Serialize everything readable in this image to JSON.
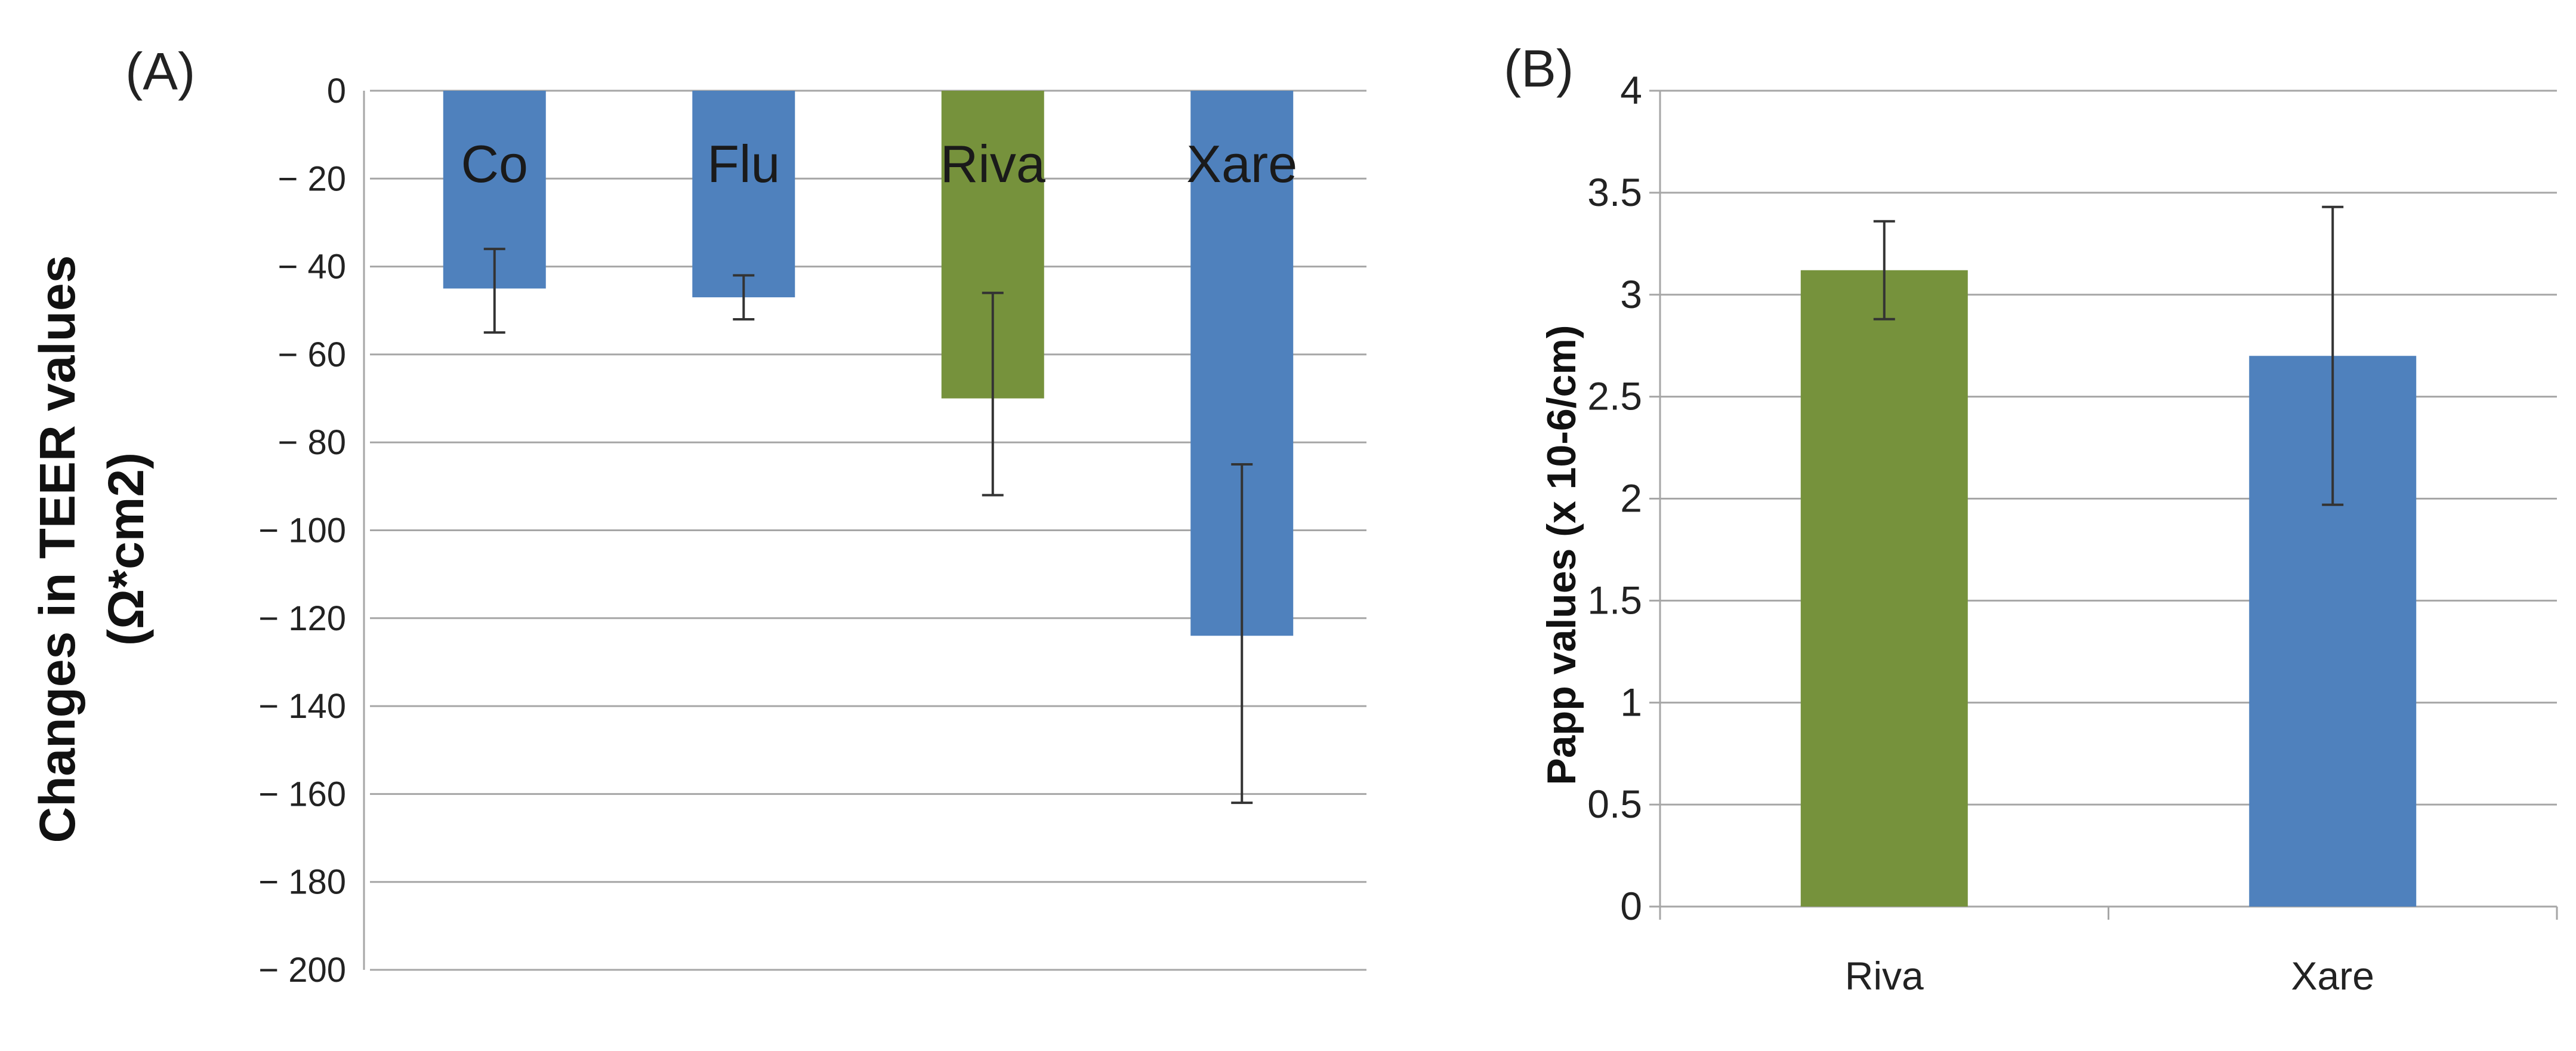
{
  "chart_data": [
    {
      "type": "bar",
      "panel_label": "(A)",
      "title": "",
      "xlabel": "",
      "ylabel_line1": "Changes in TEER values",
      "ylabel_line2": "(Ω*cm2)",
      "ylim": [
        -200,
        0
      ],
      "yticks": [
        0,
        -20,
        -40,
        -60,
        -80,
        -100,
        -120,
        -140,
        -160,
        -180,
        -200
      ],
      "ytick_labels": [
        "0",
        "− 20",
        "− 40",
        "− 60",
        "− 80",
        "− 100",
        "− 120",
        "− 140",
        "− 160",
        "− 180",
        "− 200"
      ],
      "grid": true,
      "categories": [
        "Co",
        "Flu",
        "Riva",
        "Xare"
      ],
      "values": [
        -45,
        -47,
        -70,
        -124
      ],
      "error": [
        {
          "low": -55,
          "high": -36
        },
        {
          "low": -52,
          "high": -42
        },
        {
          "low": -92,
          "high": -46
        },
        {
          "low": -162,
          "high": -85
        }
      ],
      "colors": [
        "#4f81bd",
        "#4f81bd",
        "#76923c",
        "#4f81bd"
      ]
    },
    {
      "type": "bar",
      "panel_label": "(B)",
      "title": "",
      "xlabel": "",
      "ylabel": "Papp values (x 10-6/cm)",
      "ylim": [
        0,
        4
      ],
      "yticks": [
        0,
        0.5,
        1,
        1.5,
        2,
        2.5,
        3,
        3.5,
        4
      ],
      "ytick_labels": [
        "0",
        "0.5",
        "1",
        "1.5",
        "2",
        "2.5",
        "3",
        "3.5",
        "4"
      ],
      "grid": true,
      "categories": [
        "Riva",
        "Xare"
      ],
      "values": [
        3.12,
        2.7
      ],
      "error": [
        {
          "low": 2.88,
          "high": 3.36
        },
        {
          "low": 1.97,
          "high": 3.43
        }
      ],
      "colors": [
        "#76923c",
        "#4f81bd"
      ]
    }
  ]
}
